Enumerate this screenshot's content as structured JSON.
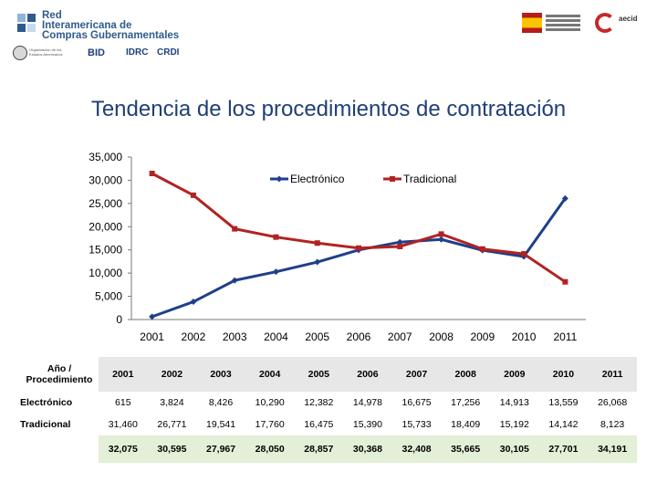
{
  "header": {
    "org_name": "Red\nInteramericana de\nCompras Gubernamentales",
    "partner_oas": "Organización de los Estados Americanos",
    "partner_bid": "BID",
    "partner_idrc": "IDRC",
    "partner_crdi": "CRDI",
    "aecid_text": "aecid"
  },
  "title": "Tendencia de los procedimientos de contratación",
  "chart_data": {
    "type": "line",
    "x": [
      "2001",
      "2002",
      "2003",
      "2004",
      "2005",
      "2006",
      "2007",
      "2008",
      "2009",
      "2010",
      "2011"
    ],
    "series": [
      {
        "name": "Electrónico",
        "values": [
          615,
          3824,
          8426,
          10290,
          12382,
          14978,
          16675,
          17256,
          14913,
          13559,
          26068
        ],
        "color": "#1f3f8a"
      },
      {
        "name": "Tradicional",
        "values": [
          31460,
          26771,
          19541,
          17760,
          16475,
          15390,
          15733,
          18409,
          15192,
          14142,
          8123
        ],
        "color": "#b22222"
      }
    ],
    "yticks": [
      "0",
      "5,000",
      "10,000",
      "15,000",
      "20,000",
      "25,000",
      "30,000",
      "35,000"
    ],
    "ylim": [
      0,
      35000
    ],
    "legend": "top-right",
    "grid": false
  },
  "table": {
    "header_label": "Año / Procedimiento",
    "years": [
      "2001",
      "2002",
      "2003",
      "2004",
      "2005",
      "2006",
      "2007",
      "2008",
      "2009",
      "2010",
      "2011"
    ],
    "rows": [
      {
        "label": "Electrónico",
        "values": [
          "615",
          "3,824",
          "8,426",
          "10,290",
          "12,382",
          "14,978",
          "16,675",
          "17,256",
          "14,913",
          "13,559",
          "26,068"
        ]
      },
      {
        "label": "Tradicional",
        "values": [
          "31,460",
          "26,771",
          "19,541",
          "17,760",
          "16,475",
          "15,390",
          "15,733",
          "18,409",
          "15,192",
          "14,142",
          "8,123"
        ]
      }
    ],
    "totals": [
      "32,075",
      "30,595",
      "27,967",
      "28,050",
      "28,857",
      "30,368",
      "32,408",
      "35,665",
      "30,105",
      "27,701",
      "34,191"
    ]
  }
}
